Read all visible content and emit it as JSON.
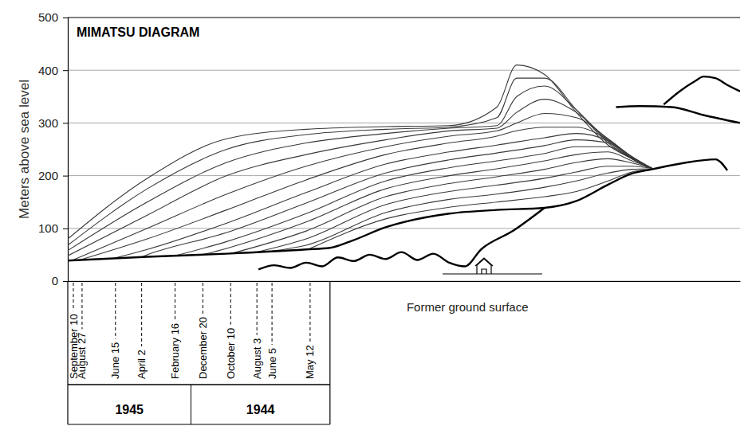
{
  "chart_data": {
    "type": "line",
    "title": "MIMATSU DIAGRAM",
    "y_label": "Meters above sea level",
    "xlim": [
      0,
      846
    ],
    "ylim": [
      0,
      500
    ],
    "yticks": [
      0,
      100,
      200,
      300,
      400,
      500
    ],
    "grid": true,
    "tick_labels": "y",
    "series": [
      {
        "color": "#3a3a3a",
        "line_style": "solid",
        "x": [
          305,
          400,
          480,
          540,
          600,
          640,
          680,
          710,
          735
        ],
        "values": [
          62,
          118,
          140,
          150,
          160,
          170,
          190,
          207,
          212
        ]
      },
      {
        "color": "#3a3a3a",
        "line_style": "solid",
        "x": [
          257,
          300,
          400,
          480,
          540,
          600,
          640,
          680,
          710,
          735
        ],
        "values": [
          57,
          68,
          130,
          155,
          165,
          178,
          190,
          205,
          212,
          213
        ]
      },
      {
        "color": "#3a3a3a",
        "line_style": "solid",
        "x": [
          238,
          300,
          400,
          480,
          540,
          600,
          640,
          680,
          710,
          735
        ],
        "values": [
          55,
          80,
          145,
          170,
          182,
          195,
          207,
          218,
          218,
          214
        ]
      },
      {
        "color": "#3a3a3a",
        "line_style": "solid",
        "x": [
          205,
          300,
          400,
          480,
          540,
          600,
          640,
          680,
          710,
          735
        ],
        "values": [
          52,
          95,
          160,
          185,
          198,
          212,
          225,
          232,
          224,
          214
        ]
      },
      {
        "color": "#3a3a3a",
        "line_style": "solid",
        "x": [
          170,
          200,
          300,
          400,
          480,
          540,
          600,
          640,
          680,
          710,
          735
        ],
        "values": [
          50,
          62,
          112,
          175,
          200,
          213,
          228,
          240,
          245,
          228,
          214
        ]
      },
      {
        "color": "#3a3a3a",
        "line_style": "solid",
        "x": [
          135,
          200,
          300,
          400,
          480,
          540,
          600,
          640,
          680,
          710,
          735
        ],
        "values": [
          48,
          75,
          128,
          190,
          215,
          228,
          242,
          255,
          255,
          232,
          214
        ]
      },
      {
        "color": "#3a3a3a",
        "line_style": "solid",
        "x": [
          93,
          100,
          200,
          300,
          400,
          480,
          540,
          600,
          640,
          680,
          710,
          735
        ],
        "values": [
          46,
          50,
          92,
          148,
          205,
          230,
          243,
          257,
          268,
          262,
          234,
          214
        ]
      },
      {
        "color": "#3a3a3a",
        "line_style": "solid",
        "x": [
          60,
          100,
          200,
          300,
          400,
          480,
          540,
          600,
          640,
          680,
          710,
          735
        ],
        "values": [
          44,
          60,
          110,
          168,
          222,
          245,
          258,
          272,
          280,
          266,
          235,
          214
        ]
      },
      {
        "color": "#3a3a3a",
        "line_style": "solid",
        "x": [
          15,
          100,
          200,
          300,
          400,
          480,
          540,
          565,
          600,
          640,
          680,
          710,
          735
        ],
        "values": [
          40,
          80,
          135,
          192,
          240,
          262,
          275,
          285,
          292,
          292,
          268,
          236,
          214
        ]
      },
      {
        "color": "#3a3a3a",
        "line_style": "solid",
        "x": [
          5,
          100,
          200,
          300,
          400,
          480,
          540,
          565,
          600,
          640,
          680,
          710,
          735
        ],
        "values": [
          39,
          100,
          165,
          218,
          255,
          275,
          285,
          300,
          318,
          310,
          270,
          236,
          214
        ]
      },
      {
        "color": "#3a3a3a",
        "line_style": "solid",
        "x": [
          0,
          100,
          200,
          300,
          400,
          480,
          540,
          565,
          600,
          640,
          680,
          710,
          735
        ],
        "values": [
          48,
          125,
          200,
          240,
          268,
          285,
          290,
          320,
          345,
          320,
          268,
          234,
          214
        ]
      },
      {
        "color": "#3a3a3a",
        "line_style": "solid",
        "x": [
          0,
          100,
          200,
          300,
          400,
          480,
          540,
          565,
          600,
          640,
          680,
          710,
          735
        ],
        "values": [
          58,
          150,
          225,
          262,
          280,
          290,
          295,
          350,
          370,
          325,
          265,
          233,
          214
        ]
      },
      {
        "color": "#3a3a3a",
        "line_style": "solid",
        "x": [
          0,
          100,
          200,
          300,
          400,
          480,
          540,
          565,
          600,
          640,
          680,
          710,
          735
        ],
        "values": [
          68,
          175,
          250,
          278,
          288,
          292,
          310,
          385,
          385,
          325,
          262,
          232,
          214
        ]
      },
      {
        "color": "#3a3a3a",
        "line_style": "solid",
        "x": [
          0,
          100,
          200,
          300,
          400,
          480,
          540,
          565,
          600,
          640,
          680,
          710,
          735
        ],
        "values": [
          80,
          195,
          270,
          288,
          293,
          295,
          330,
          410,
          392,
          320,
          258,
          232,
          214
        ]
      },
      {
        "color": "#000000",
        "line_style": "thick",
        "x": [
          0,
          100,
          200,
          300,
          330,
          355,
          400,
          480,
          540,
          600,
          640,
          680,
          710,
          735,
          775,
          815,
          830
        ],
        "values": [
          39,
          46,
          52,
          60,
          63,
          75,
          102,
          128,
          135,
          139,
          152,
          183,
          204,
          212,
          224,
          231,
          210
        ]
      },
      {
        "color": "#000000",
        "line_style": "thick",
        "x": [
          240,
          260,
          280,
          300,
          320,
          340,
          360,
          380,
          400,
          420,
          440,
          460,
          480,
          500,
          520,
          560,
          600
        ],
        "values": [
          22,
          30,
          25,
          35,
          28,
          45,
          38,
          50,
          42,
          55,
          40,
          52,
          35,
          28,
          60,
          95,
          139
        ]
      },
      {
        "color": "#000000",
        "line_style": "thick",
        "x": [
          690,
          720,
          760,
          800,
          846
        ],
        "values": [
          330,
          332,
          330,
          315,
          300
        ]
      },
      {
        "color": "#000000",
        "line_style": "thick",
        "x": [
          750,
          770,
          790,
          800,
          815,
          830,
          846
        ],
        "values": [
          335,
          360,
          380,
          388,
          385,
          372,
          360
        ]
      }
    ],
    "annotations": [
      {
        "text": "September 10",
        "x": 7
      },
      {
        "text": "August 27",
        "x": 18
      },
      {
        "text": "June 15",
        "x": 60
      },
      {
        "text": "April 2",
        "x": 93
      },
      {
        "text": "February 16",
        "x": 135
      },
      {
        "text": "December 20",
        "x": 170
      },
      {
        "text": "October 10",
        "x": 205
      },
      {
        "text": "August 3",
        "x": 238
      },
      {
        "text": "June 5",
        "x": 257
      },
      {
        "text": "May 12",
        "x": 305
      }
    ],
    "years": [
      {
        "label": "1945",
        "x": [
          0,
          155
        ]
      },
      {
        "label": "1944",
        "x": [
          155,
          330
        ]
      }
    ],
    "ground_label": {
      "text": "Former ground surface",
      "x": 503
    }
  }
}
